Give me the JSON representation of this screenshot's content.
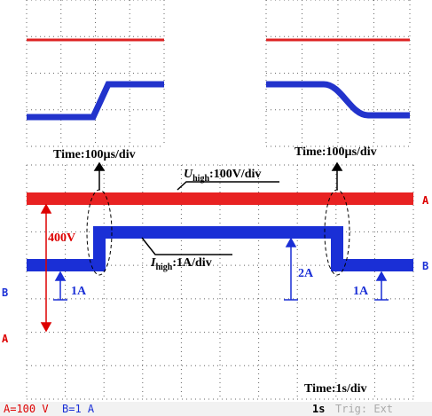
{
  "zoom_left": {
    "time_label": "Time:100µs/div"
  },
  "zoom_right": {
    "time_label": "Time:100µs/div"
  },
  "main": {
    "voltage_label": {
      "symbol": "U",
      "subscript": "high",
      "text": ":100V/div"
    },
    "current_label": {
      "symbol": "I",
      "subscript": "high",
      "text": ":1A/div"
    },
    "voltage_step": "400V",
    "current_step": "2A",
    "current_offset_left": "1A",
    "current_offset_right": "1A",
    "time_label": "Time:1s/div",
    "marker_a": "A",
    "marker_b": "B"
  },
  "status_bar": {
    "channel_a": "A=100 V",
    "channel_b": "B=1 A",
    "timebase": "1s",
    "trigger": "Trig: Ext"
  }
}
